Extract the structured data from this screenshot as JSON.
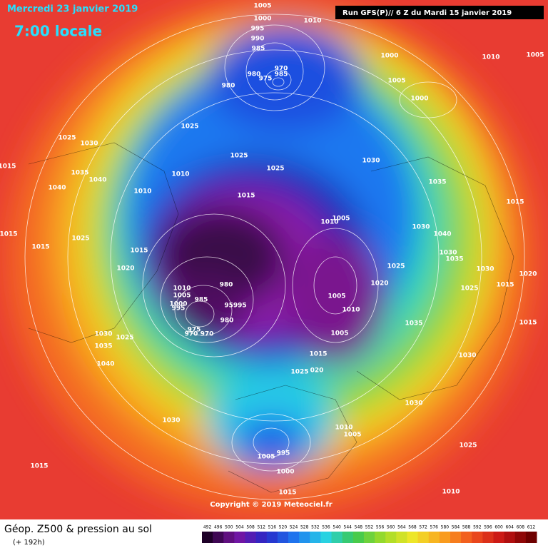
{
  "header": {
    "date": "Mercredi 23 janvier 2019",
    "time": "7:00 locale",
    "run": "Run GFS(P)// 6 Z du Mardi 15 janvier 2019"
  },
  "copyright": "Copyright © 2019 Meteociel.fr",
  "footer": {
    "title": "Géop. Z500 & pression au sol",
    "lead": "(+ 192h)"
  },
  "colorbar": {
    "labels": [
      492,
      496,
      500,
      504,
      508,
      512,
      516,
      520,
      524,
      528,
      532,
      536,
      540,
      544,
      548,
      552,
      556,
      560,
      564,
      568,
      572,
      576,
      580,
      584,
      588,
      592,
      596,
      600,
      604,
      608,
      612
    ]
  },
  "isobar_labels": [
    "1005",
    "1000",
    "995",
    "990",
    "985",
    "970",
    "985",
    "980",
    "975",
    "980",
    "1010",
    "1000",
    "1010",
    "1005",
    "1005",
    "1000",
    "1025",
    "1025",
    "1030",
    "1015",
    "1035",
    "1040",
    "1040",
    "1010",
    "1010",
    "1025",
    "1025",
    "1030",
    "1035",
    "1015",
    "1005",
    "1010",
    "1015",
    "1015",
    "1025",
    "1015",
    "1015",
    "1030",
    "1040",
    "1030",
    "1035",
    "1020",
    "1030",
    "1020",
    "1025",
    "1020",
    "980",
    "1010",
    "1005",
    "985",
    "1000",
    "995",
    "95995",
    "980",
    "975",
    "970",
    "970",
    "1005",
    "1010",
    "1025",
    "1015",
    "1035",
    "1015",
    "1005",
    "1030",
    "1025",
    "1035",
    "1015",
    "1030",
    "1040",
    "1025",
    "020",
    "1030",
    "1030",
    "1010",
    "1005",
    "1025",
    "1005",
    "995",
    "1000",
    "1015",
    "1010",
    "1015"
  ]
}
